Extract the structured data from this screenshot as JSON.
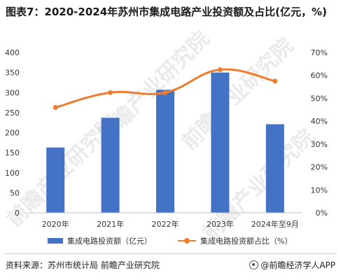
{
  "title": "图表7：2020-2024年苏州市集成电路产业投资额及占比(亿元，%)",
  "watermark": "前瞻产业研究院",
  "legend": {
    "bar_label": "集成电路投资额（亿元）",
    "line_label": "集成电路投资额占比（%）"
  },
  "footer": {
    "source": "资料来源：苏州市统计局 前瞻产业研究院",
    "brand": "@前瞻经济学人APP"
  },
  "colors": {
    "bar": "#4472c4",
    "line": "#ed7d31",
    "axis_text": "#333333"
  },
  "chart_data": {
    "type": "bar",
    "categories": [
      "2020年",
      "2021年",
      "2022年",
      "2023年",
      "2024年至9月"
    ],
    "series": [
      {
        "name": "集成电路投资额（亿元）",
        "type": "bar",
        "axis": "left",
        "values": [
          163,
          237,
          307,
          350,
          221
        ]
      },
      {
        "name": "集成电路投资额占比（%）",
        "type": "line",
        "axis": "right",
        "values": [
          46,
          52.5,
          52.5,
          62.5,
          57.5
        ]
      }
    ],
    "y_left": {
      "ticks": [
        "0",
        "50",
        "100",
        "150",
        "200",
        "250",
        "300",
        "350",
        "400"
      ],
      "ylim": [
        0,
        400
      ]
    },
    "y_right": {
      "ticks": [
        "0%",
        "10%",
        "20%",
        "30%",
        "40%",
        "50%",
        "60%",
        "70%"
      ],
      "ylim": [
        0,
        70
      ]
    },
    "grid": false,
    "legend_position": "bottom"
  }
}
